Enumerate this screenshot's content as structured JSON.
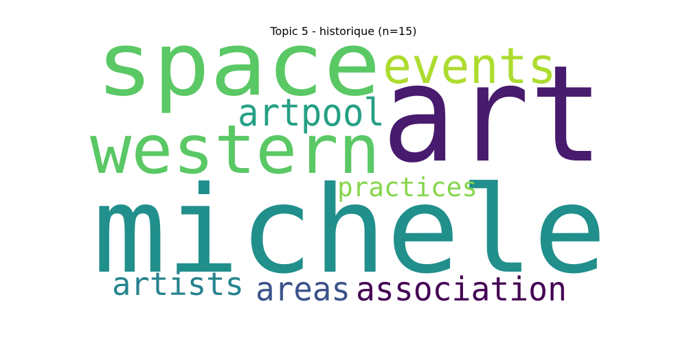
{
  "title": "Topic 5 - historique (n=15)",
  "words": [
    {
      "text": "michele",
      "color": "#218f8c"
    },
    {
      "text": "art",
      "color": "#481b6e"
    },
    {
      "text": "space",
      "color": "#5ac864"
    },
    {
      "text": "western",
      "color": "#5ac864"
    },
    {
      "text": "events",
      "color": "#addc30"
    },
    {
      "text": "artpool",
      "color": "#25a084"
    },
    {
      "text": "practices",
      "color": "#85d54a"
    },
    {
      "text": "artists",
      "color": "#26838e"
    },
    {
      "text": "areas",
      "color": "#3b528b"
    },
    {
      "text": "association",
      "color": "#440154"
    }
  ]
}
